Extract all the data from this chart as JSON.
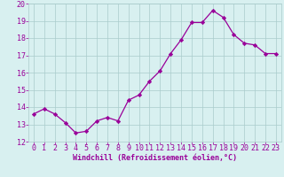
{
  "x": [
    0,
    1,
    2,
    3,
    4,
    5,
    6,
    7,
    8,
    9,
    10,
    11,
    12,
    13,
    14,
    15,
    16,
    17,
    18,
    19,
    20,
    21,
    22,
    23
  ],
  "y": [
    13.6,
    13.9,
    13.6,
    13.1,
    12.5,
    12.6,
    13.2,
    13.4,
    13.2,
    14.4,
    14.7,
    15.5,
    16.1,
    17.1,
    17.9,
    18.9,
    18.9,
    19.6,
    19.2,
    18.2,
    17.7,
    17.6,
    17.1,
    17.1
  ],
  "line_color": "#990099",
  "marker": "D",
  "markersize": 2.2,
  "linewidth": 0.9,
  "xlabel": "Windchill (Refroidissement éolien,°C)",
  "ylim": [
    12,
    20
  ],
  "xlim": [
    -0.5,
    23.5
  ],
  "yticks": [
    12,
    13,
    14,
    15,
    16,
    17,
    18,
    19,
    20
  ],
  "xticks": [
    0,
    1,
    2,
    3,
    4,
    5,
    6,
    7,
    8,
    9,
    10,
    11,
    12,
    13,
    14,
    15,
    16,
    17,
    18,
    19,
    20,
    21,
    22,
    23
  ],
  "bg_color": "#d8f0f0",
  "grid_color": "#aacccc",
  "tick_color": "#990099",
  "label_color": "#990099",
  "xlabel_fontsize": 6.0,
  "tick_fontsize": 6.0
}
